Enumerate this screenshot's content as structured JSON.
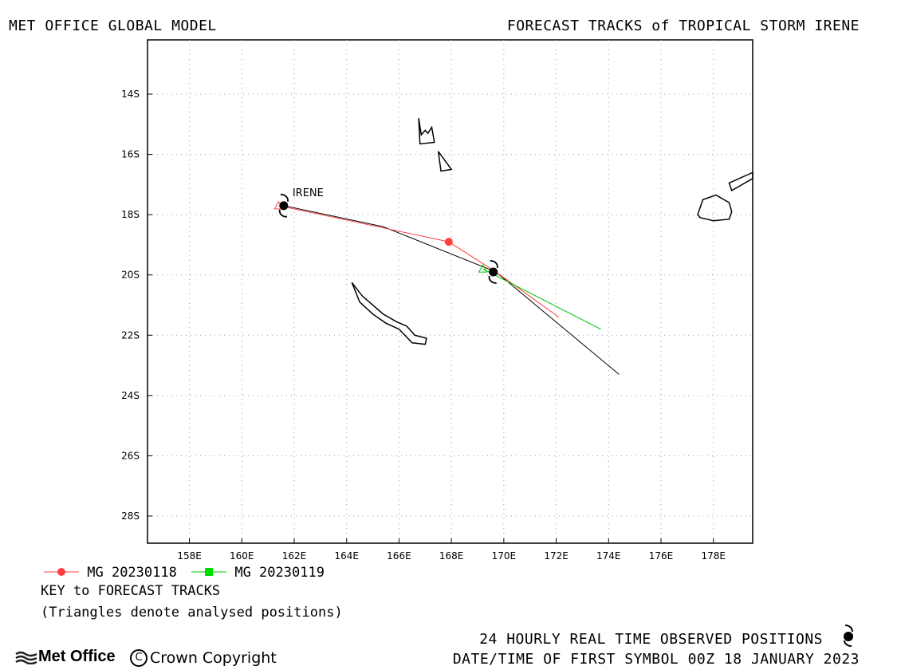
{
  "header": {
    "left": "MET OFFICE GLOBAL MODEL",
    "right": "FORECAST TRACKS of TROPICAL STORM IRENE"
  },
  "map": {
    "lon_range": [
      156.4,
      179.5
    ],
    "lat_range": [
      -28.9,
      -12.2
    ],
    "lon_ticks": [
      158,
      160,
      162,
      164,
      166,
      168,
      170,
      172,
      174,
      176,
      178
    ],
    "lon_labels": [
      "158E",
      "160E",
      "162E",
      "164E",
      "166E",
      "168E",
      "170E",
      "172E",
      "174E",
      "176E",
      "178E"
    ],
    "lat_ticks": [
      -14,
      -16,
      -18,
      -20,
      -22,
      -24,
      -26,
      -28
    ],
    "lat_labels": [
      "14S",
      "16S",
      "18S",
      "20S",
      "22S",
      "24S",
      "26S",
      "28S"
    ],
    "grid": true,
    "storm_label": "IRENE",
    "observed_track": [
      [
        161.6,
        -17.7
      ],
      [
        165.4,
        -18.4
      ],
      [
        169.7,
        -19.9
      ],
      [
        174.4,
        -23.3
      ]
    ],
    "observed_symbols": [
      [
        161.6,
        -17.7
      ],
      [
        169.6,
        -19.9
      ]
    ],
    "forecast_tracks": [
      {
        "name": "MG 20230118",
        "color": "#ff4040",
        "points": [
          [
            161.4,
            -17.7
          ],
          [
            167.9,
            -18.9
          ],
          [
            169.7,
            -19.9
          ],
          [
            172.1,
            -21.4
          ]
        ],
        "markers": [
          [
            167.9,
            -18.9
          ]
        ],
        "analysed": [
          [
            161.4,
            -17.7
          ]
        ]
      },
      {
        "name": "MG 20230119",
        "color": "#00c000",
        "points": [
          [
            169.2,
            -19.8
          ],
          [
            173.7,
            -21.8
          ]
        ],
        "markers": [],
        "analysed": [
          [
            169.2,
            -19.8
          ]
        ]
      }
    ],
    "land_outlines": [
      [
        [
          164.2,
          -20.25
        ],
        [
          164.6,
          -20.7
        ],
        [
          165.4,
          -21.3
        ],
        [
          165.9,
          -21.55
        ],
        [
          166.3,
          -21.7
        ],
        [
          166.6,
          -22.0
        ],
        [
          167.05,
          -22.1
        ],
        [
          167.0,
          -22.3
        ],
        [
          166.5,
          -22.25
        ],
        [
          166.0,
          -21.8
        ],
        [
          165.5,
          -21.6
        ],
        [
          165.0,
          -21.3
        ],
        [
          164.5,
          -20.9
        ],
        [
          164.2,
          -20.25
        ]
      ],
      [
        [
          166.75,
          -14.8
        ],
        [
          166.85,
          -15.35
        ],
        [
          167.0,
          -15.2
        ],
        [
          167.1,
          -15.3
        ],
        [
          167.25,
          -15.1
        ],
        [
          167.35,
          -15.6
        ],
        [
          166.8,
          -15.65
        ],
        [
          166.75,
          -14.8
        ]
      ],
      [
        [
          167.5,
          -15.9
        ],
        [
          168.0,
          -16.5
        ],
        [
          167.6,
          -16.55
        ],
        [
          167.5,
          -15.9
        ]
      ],
      [
        [
          177.4,
          -18.0
        ],
        [
          177.6,
          -17.5
        ],
        [
          178.1,
          -17.35
        ],
        [
          178.6,
          -17.6
        ],
        [
          178.7,
          -17.9
        ],
        [
          178.6,
          -18.15
        ],
        [
          178.0,
          -18.2
        ],
        [
          177.5,
          -18.1
        ],
        [
          177.4,
          -18.0
        ]
      ],
      [
        [
          178.6,
          -16.95
        ],
        [
          179.5,
          -16.6
        ],
        [
          179.5,
          -16.8
        ],
        [
          179.0,
          -17.05
        ],
        [
          178.7,
          -17.2
        ],
        [
          178.6,
          -16.95
        ]
      ]
    ]
  },
  "legend": {
    "items": [
      {
        "label": "MG 20230118",
        "color": "#ff4040",
        "marker": "circle"
      },
      {
        "label": "MG 20230119",
        "color": "#00c000",
        "marker": "square"
      }
    ],
    "key_title": "KEY to FORECAST TRACKS",
    "note": "(Triangles denote analysed positions)"
  },
  "footer": {
    "observed": "24 HOURLY REAL TIME OBSERVED POSITIONS",
    "first_symbol": "DATE/TIME OF FIRST SYMBOL 00Z 18 JANUARY 2023",
    "logo_text": "Met Office",
    "copyright": "Crown Copyright"
  }
}
